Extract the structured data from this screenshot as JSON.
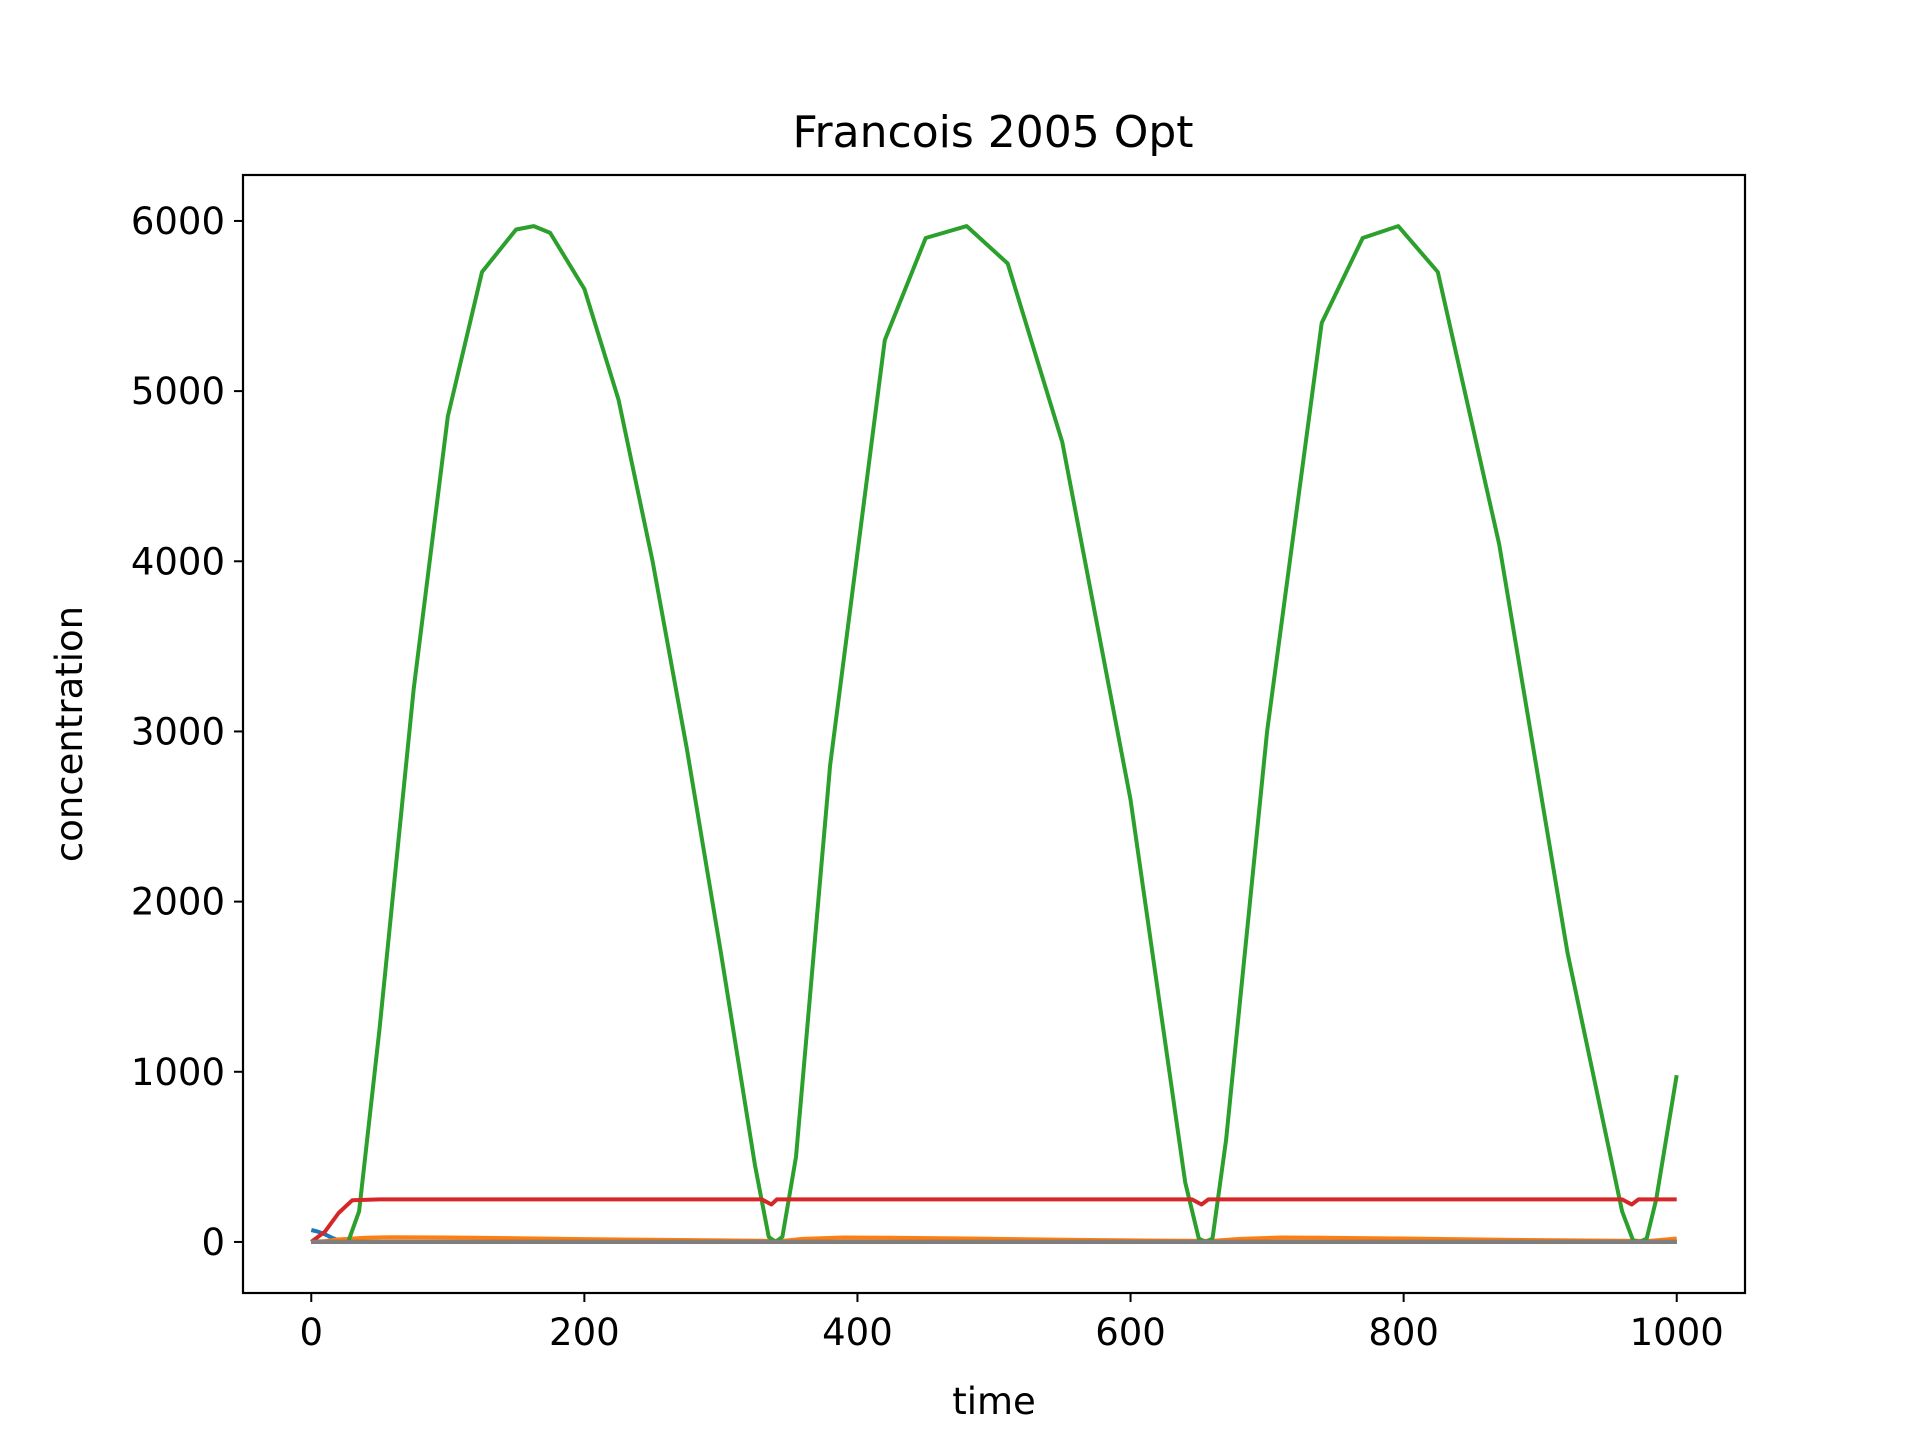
{
  "chart_data": {
    "type": "line",
    "title": "Francois 2005 Opt",
    "xlabel": "time",
    "ylabel": "concentration",
    "xlim": [
      -50,
      1050
    ],
    "ylim": [
      -300,
      6270
    ],
    "xticks": [
      0,
      200,
      400,
      600,
      800,
      1000
    ],
    "yticks": [
      0,
      1000,
      2000,
      3000,
      4000,
      5000,
      6000
    ],
    "grid": false,
    "legend": "none",
    "series": [
      {
        "color": "#1f77b4",
        "x": [
          0,
          5,
          10,
          15,
          20,
          30,
          40,
          60,
          100,
          200,
          400,
          600,
          800,
          1000
        ],
        "y": [
          70,
          60,
          45,
          25,
          10,
          3,
          1,
          0.5,
          0.3,
          0.3,
          0.3,
          0.3,
          0.3,
          0.3
        ]
      },
      {
        "color": "#ff7f0e",
        "x": [
          0,
          10,
          20,
          40,
          60,
          100,
          150,
          200,
          260,
          320,
          345,
          360,
          390,
          420,
          480,
          560,
          640,
          660,
          680,
          710,
          740,
          800,
          880,
          960,
          980,
          1000
        ],
        "y": [
          0,
          5,
          15,
          25,
          28,
          26,
          22,
          17,
          12,
          8,
          6,
          18,
          26,
          25,
          20,
          12,
          7,
          6,
          18,
          26,
          25,
          20,
          12,
          7,
          6,
          20
        ]
      },
      {
        "color": "#2ca02c",
        "x": [
          0,
          10,
          20,
          27,
          35,
          50,
          75,
          100,
          125,
          150,
          163,
          175,
          200,
          225,
          250,
          275,
          300,
          325,
          335,
          340,
          345,
          355,
          380,
          420,
          450,
          480,
          510,
          550,
          600,
          640,
          650,
          655,
          660,
          670,
          700,
          740,
          770,
          796,
          825,
          870,
          920,
          960,
          968,
          973,
          978,
          985,
          1000
        ],
        "y": [
          0,
          0,
          0,
          0,
          180,
          1250,
          3250,
          4850,
          5700,
          5950,
          5970,
          5930,
          5600,
          4950,
          4000,
          2900,
          1700,
          450,
          30,
          0,
          30,
          500,
          2800,
          5300,
          5900,
          5970,
          5750,
          4700,
          2600,
          350,
          20,
          0,
          20,
          600,
          3000,
          5400,
          5900,
          5970,
          5700,
          4100,
          1700,
          180,
          10,
          0,
          20,
          250,
          980
        ]
      },
      {
        "color": "#d62728",
        "x": [
          0,
          10,
          20,
          30,
          50,
          100,
          200,
          300,
          330,
          337,
          341,
          350,
          400,
          500,
          600,
          645,
          652,
          657,
          665,
          700,
          800,
          900,
          960,
          967,
          972,
          980,
          1000
        ],
        "y": [
          0,
          60,
          170,
          245,
          250,
          250,
          250,
          250,
          250,
          220,
          250,
          250,
          250,
          250,
          250,
          250,
          220,
          250,
          250,
          250,
          250,
          250,
          250,
          220,
          250,
          250,
          250
        ]
      },
      {
        "color": "#9467bd",
        "x": [
          0,
          1000
        ],
        "y": [
          0,
          0
        ]
      },
      {
        "color": "#8c564b",
        "x": [
          0,
          1000
        ],
        "y": [
          0,
          0
        ]
      },
      {
        "color": "#7f7f7f",
        "x": [
          0,
          1000
        ],
        "y": [
          0,
          0
        ]
      }
    ]
  }
}
